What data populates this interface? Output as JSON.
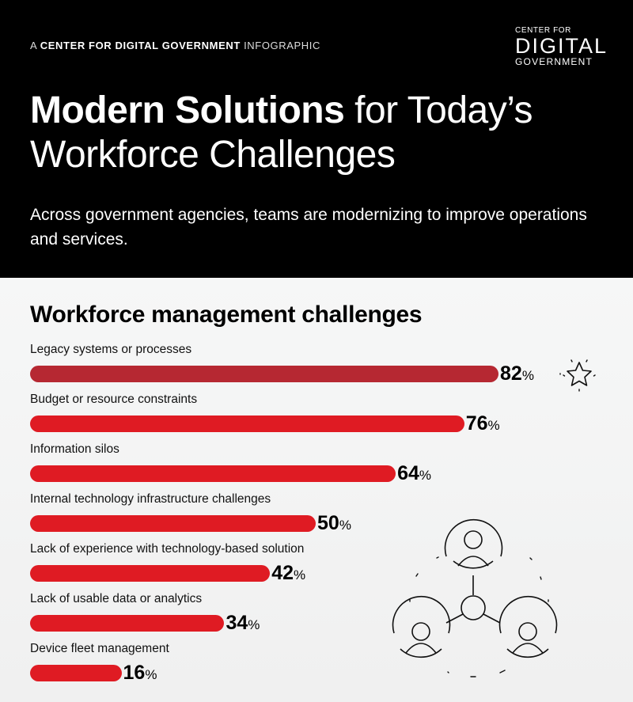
{
  "header": {
    "kicker_prefix": "A",
    "kicker_bold": "CENTER FOR DIGITAL GOVERNMENT",
    "kicker_suffix": "INFOGRAPHIC",
    "logo": {
      "line1": "CENTER FOR",
      "line2": "DIGITAL",
      "line3": "GOVERNMENT"
    },
    "title_bold": "Modern Solutions",
    "title_light_1": " for Today’s",
    "title_light_2": "Workforce Challenges",
    "subtitle": "Across government agencies, teams are modernizing to improve operations and services."
  },
  "colors": {
    "bar": "#df1b23",
    "bar_highlight": "#b62832",
    "header_bg": "#000000"
  },
  "icons": {
    "highlight": "star-icon",
    "illustration": "connected-people-icon"
  },
  "chart_data": {
    "type": "bar",
    "orientation": "horizontal",
    "title": "Workforce management challenges",
    "xlabel": "",
    "ylabel": "",
    "unit": "%",
    "categories": [
      "Legacy systems or processes",
      "Budget or resource constraints",
      "Information silos",
      "Internal technology infrastructure challenges",
      "Lack of experience with technology-based solution",
      "Lack of usable data or analytics",
      "Device fleet management"
    ],
    "values": [
      82,
      76,
      64,
      50,
      42,
      34,
      16
    ],
    "labels": [
      "82",
      "76",
      "64",
      "50",
      "42",
      "34",
      "16"
    ],
    "grid": false,
    "legend": "none"
  }
}
